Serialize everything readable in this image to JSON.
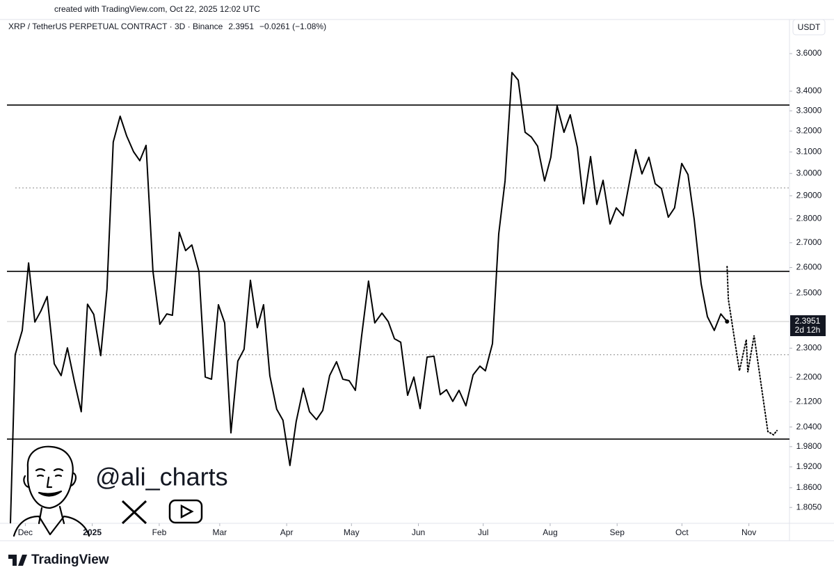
{
  "caption": "created with TradingView.com, Oct 22, 2025 12:02 UTC",
  "brand": "TradingView",
  "watermark": {
    "handle": "@ali_charts"
  },
  "chart_data": {
    "type": "line",
    "title": "XRP / TetherUS PERPETUAL CONTRACT · 3D · Binance",
    "last": "2.3951",
    "change": "−0.0261 (−1.08%)",
    "currency": "USDT",
    "countdown": "2d 12h",
    "color": "#000000",
    "log": true,
    "x": [
      -37.9,
      -35.7,
      -32.4,
      -29.5,
      -26.6,
      -23.8,
      -20.9,
      -17.6,
      -14.4,
      -11.5,
      -8.3,
      -5.1,
      -2.2,
      0.7,
      3.9,
      6.8,
      9.7,
      12.9,
      15.9,
      19.1,
      22.0,
      24.9,
      28.1,
      31.3,
      34.5,
      37.1,
      40.3,
      43.2,
      46.1,
      49.4,
      52.3,
      55.2,
      58.4,
      61.3,
      64.2,
      67.4,
      70.3,
      73.2,
      76.4,
      79.3,
      82.2,
      85.4,
      88.3,
      91.5,
      94.4,
      97.7,
      100.6,
      103.8,
      106.7,
      109.9,
      113.1,
      116.0,
      118.9,
      121.8,
      124.7,
      127.9,
      130.8,
      134.1,
      137.0,
      139.9,
      142.8,
      146.0,
      148.9,
      151.8,
      155.0,
      158.2,
      161.1,
      164.0,
      166.9,
      169.8,
      173.0,
      176.3,
      179.5,
      182.0,
      185.3,
      188.2,
      191.1,
      194.3,
      197.2,
      200.4,
      203.3,
      206.2,
      209.4,
      212.3,
      215.2,
      218.4,
      221.3,
      224.6,
      227.5,
      230.7,
      233.6,
      236.5,
      239.7,
      242.6,
      245.8,
      248.7,
      251.6,
      254.5,
      257.7,
      260.6,
      263.5,
      266.7,
      269.6,
      272.9,
      275.8,
      278.7,
      281.9,
      284.8,
      288.0,
      291.0,
      293.9
    ],
    "values": [
      1.762,
      2.277,
      2.363,
      2.618,
      2.393,
      2.434,
      2.488,
      2.246,
      2.206,
      2.301,
      2.187,
      2.088,
      2.459,
      2.421,
      2.274,
      2.517,
      3.147,
      3.273,
      3.177,
      3.101,
      3.059,
      3.131,
      2.585,
      2.385,
      2.423,
      2.418,
      2.743,
      2.668,
      2.691,
      2.585,
      2.201,
      2.194,
      2.457,
      2.39,
      2.022,
      2.255,
      2.296,
      2.55,
      2.373,
      2.457,
      2.206,
      2.096,
      2.061,
      1.924,
      2.057,
      2.164,
      2.088,
      2.063,
      2.092,
      2.206,
      2.253,
      2.194,
      2.189,
      2.157,
      2.343,
      2.547,
      2.39,
      2.426,
      2.395,
      2.333,
      2.321,
      2.141,
      2.201,
      2.098,
      2.269,
      2.272,
      2.143,
      2.159,
      2.121,
      2.157,
      2.107,
      2.208,
      2.238,
      2.222,
      2.316,
      2.737,
      2.966,
      3.498,
      3.458,
      3.194,
      3.171,
      3.127,
      2.966,
      3.075,
      3.325,
      3.194,
      3.28,
      3.121,
      2.865,
      3.078,
      2.862,
      2.969,
      2.778,
      2.847,
      2.813,
      2.96,
      3.111,
      2.998,
      3.075,
      2.954,
      2.932,
      2.807,
      2.847,
      3.046,
      2.995,
      2.796,
      2.536,
      2.413,
      2.363,
      2.423,
      2.3951
    ],
    "projection": {
      "x": [
        293.9,
        294.5,
        299.6,
        302.8,
        303.5,
        306.4,
        312.8,
        315.4,
        317.0
      ],
      "values": [
        2.604,
        2.478,
        2.222,
        2.33,
        2.217,
        2.345,
        2.026,
        2.016,
        2.029
      ]
    },
    "levels": [
      {
        "value": 3.329,
        "style": "solid"
      },
      {
        "value": 2.935,
        "style": "dashed"
      },
      {
        "value": 2.585,
        "style": "solid"
      },
      {
        "value": 2.277,
        "style": "dashed"
      },
      {
        "value": 2.003,
        "style": "solid"
      }
    ],
    "xlim": [
      -39.5,
      322.8
    ],
    "ylim": [
      1.762,
      3.685
    ],
    "xticks": [
      {
        "value": -31,
        "label": "Dec"
      },
      {
        "value": 0,
        "label": "2025"
      },
      {
        "value": 31,
        "label": "Feb"
      },
      {
        "value": 59,
        "label": "Mar"
      },
      {
        "value": 90,
        "label": "Apr"
      },
      {
        "value": 120,
        "label": "May"
      },
      {
        "value": 151,
        "label": "Jun"
      },
      {
        "value": 181,
        "label": "Jul"
      },
      {
        "value": 212,
        "label": "Aug"
      },
      {
        "value": 243,
        "label": "Sep"
      },
      {
        "value": 273,
        "label": "Oct"
      },
      {
        "value": 304,
        "label": "Nov"
      }
    ],
    "yticks": [
      {
        "value": 3.6,
        "label": "3.6000"
      },
      {
        "value": 3.4,
        "label": "3.4000"
      },
      {
        "value": 3.3,
        "label": "3.3000"
      },
      {
        "value": 3.2,
        "label": "3.2000"
      },
      {
        "value": 3.1,
        "label": "3.1000"
      },
      {
        "value": 3.0,
        "label": "3.0000"
      },
      {
        "value": 2.9,
        "label": "2.9000"
      },
      {
        "value": 2.8,
        "label": "2.8000"
      },
      {
        "value": 2.7,
        "label": "2.7000"
      },
      {
        "value": 2.6,
        "label": "2.6000"
      },
      {
        "value": 2.5,
        "label": "2.5000"
      },
      {
        "value": 2.3,
        "label": "2.3000"
      },
      {
        "value": 2.2,
        "label": "2.2000"
      },
      {
        "value": 2.12,
        "label": "2.1200"
      },
      {
        "value": 2.04,
        "label": "2.0400"
      },
      {
        "value": 1.98,
        "label": "1.9800"
      },
      {
        "value": 1.92,
        "label": "1.9200"
      },
      {
        "value": 1.86,
        "label": "1.8600"
      },
      {
        "value": 1.805,
        "label": "1.8050"
      }
    ]
  }
}
